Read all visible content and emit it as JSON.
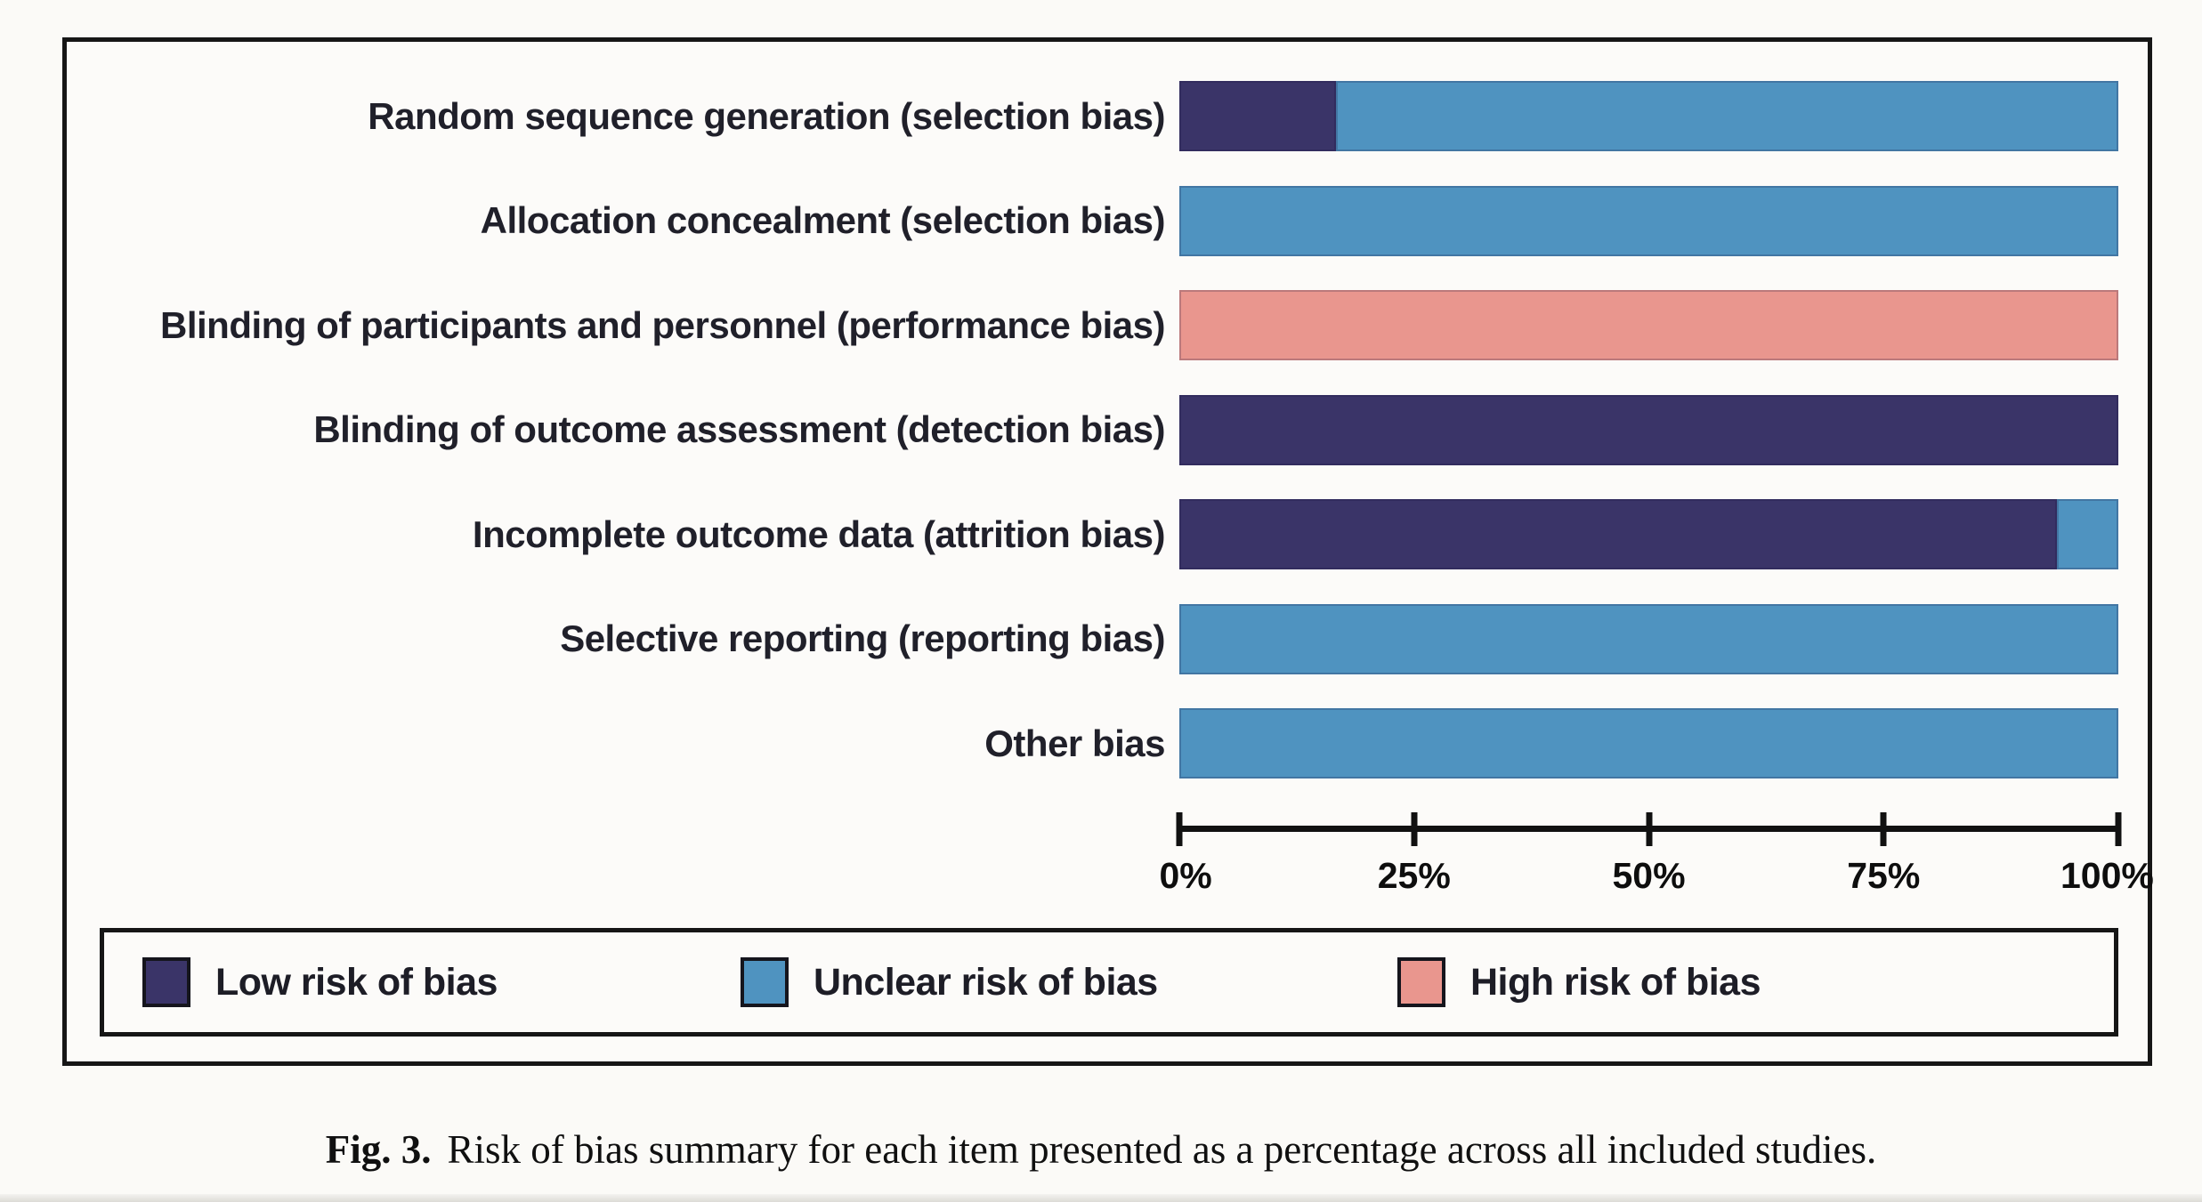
{
  "figure": {
    "caption_prefix": "Fig. 3.",
    "caption_text": "Risk of bias summary for each item presented as a percentage across all included studies."
  },
  "colors": {
    "low_risk": "#3a3468",
    "unclear_risk": "#4f93c0",
    "high_risk": "#e9968e",
    "axis": "#111111",
    "frame_border": "#161616",
    "background": "#fbfaf7"
  },
  "chart_data": {
    "type": "bar",
    "orientation": "horizontal_stacked",
    "title": "",
    "xlabel": "",
    "ylabel": "",
    "x_range": [
      0,
      100
    ],
    "x_tick_labels": [
      "0%",
      "25%",
      "50%",
      "75%",
      "100%"
    ],
    "grid": false,
    "legend_position": "bottom-boxed",
    "categories": [
      "Random sequence generation (selection bias)",
      "Allocation concealment (selection bias)",
      "Blinding of participants and personnel (performance bias)",
      "Blinding of outcome assessment (detection bias)",
      "Incomplete outcome data (attrition bias)",
      "Selective reporting (reporting bias)",
      "Other bias"
    ],
    "series": [
      {
        "name": "Low risk of bias",
        "color": "#3a3468",
        "values": [
          16.7,
          0,
          0,
          100,
          93.5,
          0,
          0
        ]
      },
      {
        "name": "Unclear risk of bias",
        "color": "#4f93c0",
        "values": [
          83.3,
          100,
          0,
          0,
          6.5,
          100,
          100
        ]
      },
      {
        "name": "High risk of bias",
        "color": "#e9968e",
        "values": [
          0,
          0,
          100,
          0,
          0,
          0,
          0
        ]
      }
    ]
  }
}
